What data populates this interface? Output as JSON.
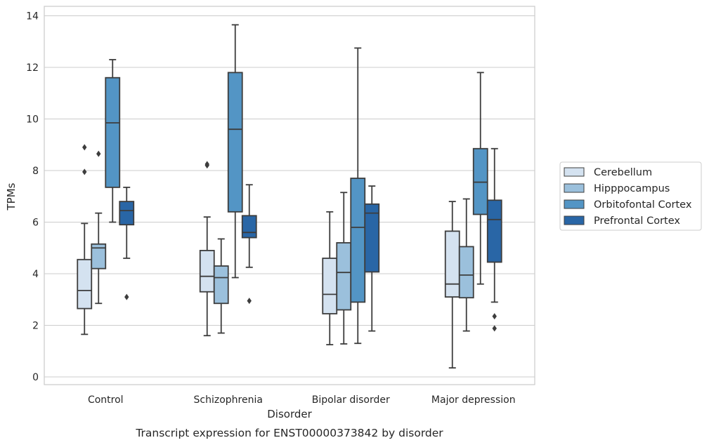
{
  "chart_data": {
    "type": "box",
    "title": "",
    "caption": "Transcript expression for ENST00000373842 by disorder",
    "xlabel": "Disorder",
    "ylabel": "TPMs",
    "ylim": [
      -0.3,
      14.3
    ],
    "yticks": [
      0,
      2,
      4,
      6,
      8,
      10,
      12,
      14
    ],
    "grid": true,
    "legend_position": "right",
    "categories": [
      "Control",
      "Schizophrenia",
      "Bipolar disorder",
      "Major depression"
    ],
    "series": [
      {
        "name": "Cerebellum",
        "color": "#d4e2f0",
        "boxes": [
          {
            "whislo": 1.65,
            "q1": 2.65,
            "med": 3.35,
            "q3": 4.55,
            "whishi": 5.95,
            "fliers": [
              7.95,
              8.9
            ]
          },
          {
            "whislo": 1.6,
            "q1": 3.3,
            "med": 3.9,
            "q3": 4.9,
            "whishi": 6.2,
            "fliers": [
              8.2,
              8.25
            ]
          },
          {
            "whislo": 1.25,
            "q1": 2.45,
            "med": 3.2,
            "q3": 4.6,
            "whishi": 6.4,
            "fliers": []
          },
          {
            "whislo": 0.35,
            "q1": 3.1,
            "med": 3.6,
            "q3": 5.65,
            "whishi": 6.8,
            "fliers": []
          }
        ]
      },
      {
        "name": "Hipppocampus",
        "color": "#9bc0dc",
        "boxes": [
          {
            "whislo": 2.85,
            "q1": 4.2,
            "med": 5.0,
            "q3": 5.15,
            "whishi": 6.35,
            "fliers": [
              8.65
            ]
          },
          {
            "whislo": 1.7,
            "q1": 2.85,
            "med": 3.85,
            "q3": 4.3,
            "whishi": 5.35,
            "fliers": []
          },
          {
            "whislo": 1.28,
            "q1": 2.6,
            "med": 4.05,
            "q3": 5.2,
            "whishi": 7.15,
            "fliers": []
          },
          {
            "whislo": 1.78,
            "q1": 3.07,
            "med": 3.95,
            "q3": 5.05,
            "whishi": 6.9,
            "fliers": []
          }
        ]
      },
      {
        "name": "Orbitofontal Cortex",
        "color": "#5395c5",
        "boxes": [
          {
            "whislo": 6.0,
            "q1": 7.35,
            "med": 9.85,
            "q3": 11.6,
            "whishi": 12.3,
            "fliers": []
          },
          {
            "whislo": 3.85,
            "q1": 6.4,
            "med": 9.6,
            "q3": 11.8,
            "whishi": 13.65,
            "fliers": []
          },
          {
            "whislo": 1.3,
            "q1": 2.9,
            "med": 5.8,
            "q3": 7.7,
            "whishi": 12.75,
            "fliers": []
          },
          {
            "whislo": 3.6,
            "q1": 6.3,
            "med": 7.55,
            "q3": 8.85,
            "whishi": 11.8,
            "fliers": []
          }
        ]
      },
      {
        "name": "Prefrontal Cortex",
        "color": "#2966a6",
        "boxes": [
          {
            "whislo": 4.6,
            "q1": 5.9,
            "med": 6.45,
            "q3": 6.8,
            "whishi": 7.35,
            "fliers": [
              3.1
            ]
          },
          {
            "whislo": 4.25,
            "q1": 5.4,
            "med": 5.6,
            "q3": 6.25,
            "whishi": 7.45,
            "fliers": [
              2.95
            ]
          },
          {
            "whislo": 1.78,
            "q1": 4.07,
            "med": 6.35,
            "q3": 6.7,
            "whishi": 7.4,
            "fliers": []
          },
          {
            "whislo": 2.9,
            "q1": 4.45,
            "med": 6.1,
            "q3": 6.85,
            "whishi": 8.85,
            "fliers": [
              1.88,
              2.35
            ]
          }
        ]
      }
    ]
  }
}
